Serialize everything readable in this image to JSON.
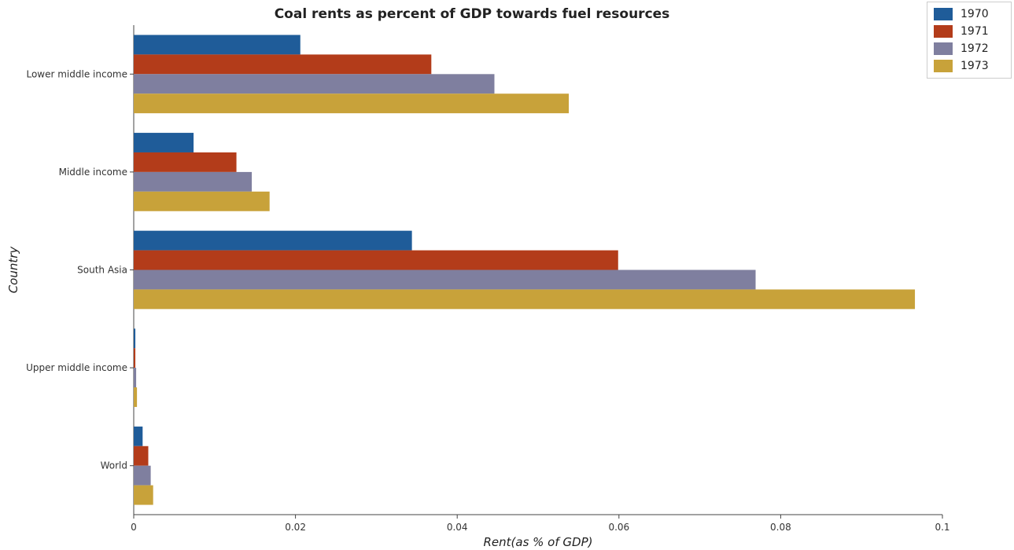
{
  "chart_data": {
    "type": "bar",
    "orientation": "horizontal",
    "title": "Coal rents as percent of GDP towards fuel resources",
    "xlabel": "Rent(as % of GDP)",
    "ylabel": "Country",
    "xlim": [
      0,
      0.1
    ],
    "x_ticks": [
      "0",
      "0.02",
      "0.04",
      "0.06",
      "0.08",
      "0.1"
    ],
    "x_tick_values": [
      0,
      0.02,
      0.04,
      0.06,
      0.08,
      0.1
    ],
    "categories": [
      "Lower middle income",
      "Middle income",
      "South Asia",
      "Upper middle income",
      "World"
    ],
    "series": [
      {
        "name": "1970",
        "color": "#1f5c99",
        "values": [
          0.0206,
          0.0074,
          0.0344,
          0.0002,
          0.0011
        ]
      },
      {
        "name": "1971",
        "color": "#b33c1a",
        "values": [
          0.0368,
          0.0127,
          0.0599,
          0.0002,
          0.0018
        ]
      },
      {
        "name": "1972",
        "color": "#7f7f9f",
        "values": [
          0.0446,
          0.0146,
          0.0769,
          0.0003,
          0.0021
        ]
      },
      {
        "name": "1973",
        "color": "#c8a23a",
        "values": [
          0.0538,
          0.0168,
          0.0966,
          0.0004,
          0.0024
        ]
      }
    ],
    "grid": false,
    "legend_position": "top-right"
  }
}
